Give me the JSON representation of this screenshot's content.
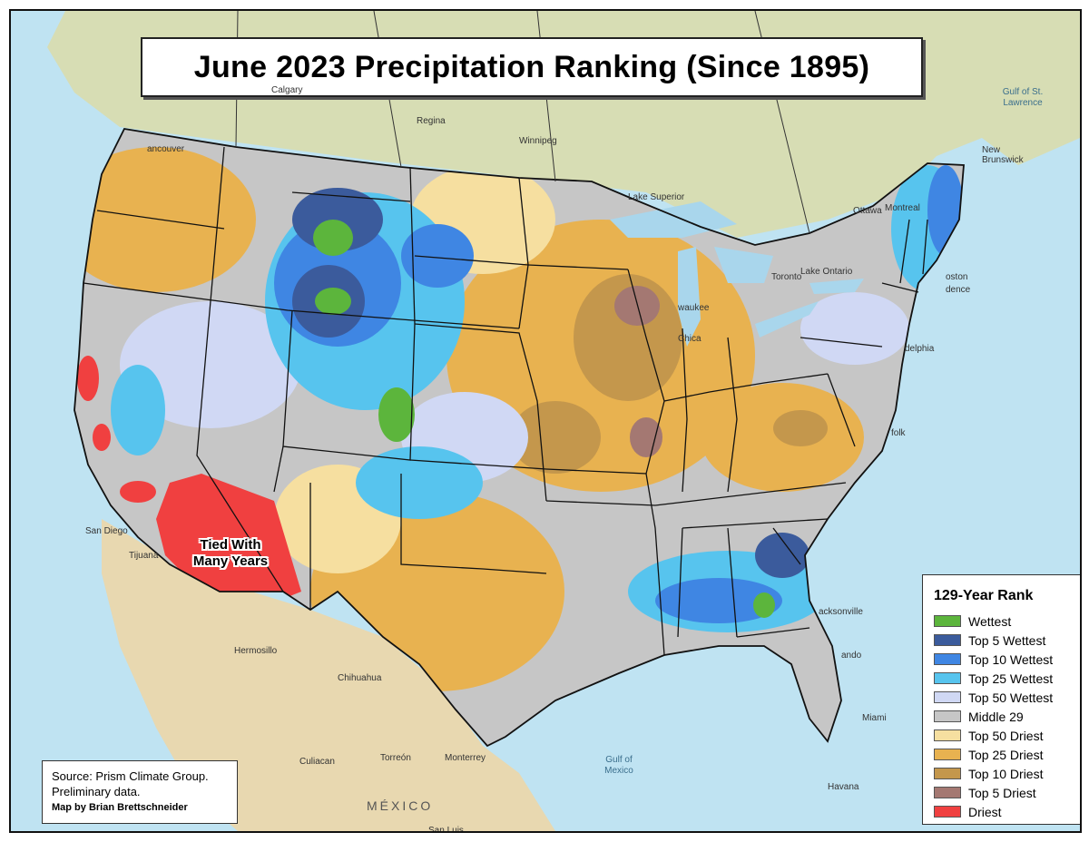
{
  "map": {
    "title": "June 2023 Precipitation Ranking (Since 1895)",
    "callout": {
      "line1": "Tied With",
      "line2": "Many Years"
    },
    "places": [
      {
        "id": "calgary",
        "label": "Calgary"
      },
      {
        "id": "regina",
        "label": "Regina"
      },
      {
        "id": "winnipeg",
        "label": "Winnipeg"
      },
      {
        "id": "vancouver",
        "label": "ancouver"
      },
      {
        "id": "lake-superior",
        "label": "Lake Superior"
      },
      {
        "id": "ottawa",
        "label": "Ottawa"
      },
      {
        "id": "montreal",
        "label": "Montreal"
      },
      {
        "id": "toronto",
        "label": "Toronto"
      },
      {
        "id": "lake-ontario",
        "label": "Lake Ontario"
      },
      {
        "id": "boston",
        "label": "oston"
      },
      {
        "id": "providence",
        "label": "dence"
      },
      {
        "id": "philadelphia",
        "label": "delphia"
      },
      {
        "id": "milwaukee",
        "label": "waukee"
      },
      {
        "id": "chicago",
        "label": "Chica"
      },
      {
        "id": "norfolk",
        "label": "folk"
      },
      {
        "id": "jacksonville",
        "label": "acksonville"
      },
      {
        "id": "orlando",
        "label": "ando"
      },
      {
        "id": "miami",
        "label": "Miami"
      },
      {
        "id": "havana",
        "label": "Havana"
      },
      {
        "id": "gulf-of-mexico",
        "label": "Gulf of\nMexico"
      },
      {
        "id": "gulf-of-st-lawrence",
        "label": "Gulf of St.\nLawrence"
      },
      {
        "id": "new-brunswick",
        "label": "New\nBrunswick"
      },
      {
        "id": "san-diego",
        "label": "San Diego"
      },
      {
        "id": "tijuana",
        "label": "Tijuana"
      },
      {
        "id": "hermosillo",
        "label": "Hermosillo"
      },
      {
        "id": "chihuahua",
        "label": "Chihuahua"
      },
      {
        "id": "culiacan",
        "label": "Culiacan"
      },
      {
        "id": "torreon",
        "label": "Torreón"
      },
      {
        "id": "monterrey",
        "label": "Monterrey"
      },
      {
        "id": "mexico",
        "label": "MÉXICO"
      },
      {
        "id": "san-luis",
        "label": "San Luis"
      }
    ]
  },
  "legend": {
    "title": "129-Year Rank",
    "items": [
      {
        "label": "Wettest",
        "color": "#5cb53c"
      },
      {
        "label": "Top 5 Wettest",
        "color": "#3b5b9c"
      },
      {
        "label": "Top 10 Wettest",
        "color": "#3f86e3"
      },
      {
        "label": "Top 25 Wettest",
        "color": "#57c4ee"
      },
      {
        "label": "Top 50 Wettest",
        "color": "#d0d8f4"
      },
      {
        "label": "Middle 29",
        "color": "#c6c6c6"
      },
      {
        "label": "Top 50 Driest",
        "color": "#f6dfa0"
      },
      {
        "label": "Top 25 Driest",
        "color": "#e8b250"
      },
      {
        "label": "Top 10 Driest",
        "color": "#c4974c"
      },
      {
        "label": "Top 5 Driest",
        "color": "#a47872"
      },
      {
        "label": "Driest",
        "color": "#f04040"
      }
    ]
  },
  "source": {
    "line1": "Source: Prism Climate Group.",
    "line2": "Preliminary data.",
    "credit": "Map by Brian Brettschneider"
  },
  "colors": {
    "ocean": "#bfe3f2",
    "land_canada": "#d7ddb4",
    "land_mexico": "#e8d8b0",
    "lake": "#a9d6ec"
  }
}
